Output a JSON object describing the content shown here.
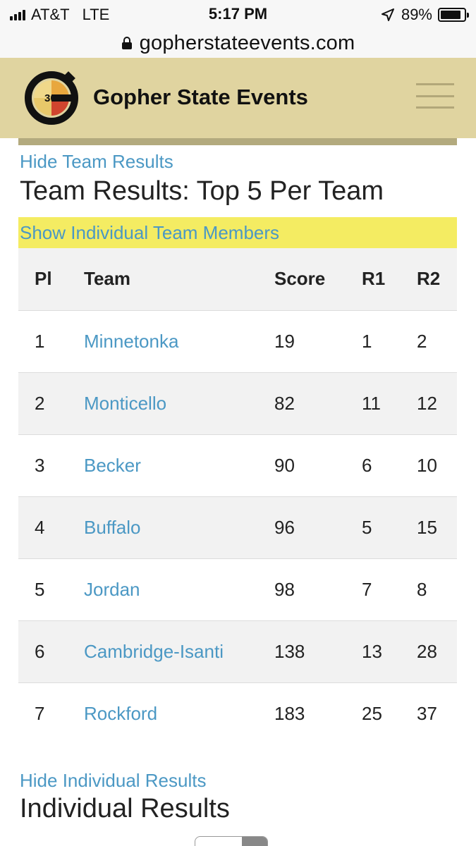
{
  "status_bar": {
    "carrier": "AT&T",
    "network": "LTE",
    "time": "5:17 PM",
    "battery": "89%",
    "battery_level": 0.89
  },
  "browser": {
    "url": "gopherstateevents.com"
  },
  "header": {
    "site_name": "Gopher State Events",
    "logo_text": "30",
    "accent_color": "#e0d4a0"
  },
  "team_section": {
    "hide_link": "Hide Team Results",
    "heading": "Team Results: Top 5 Per Team",
    "show_members_link": "Show Individual Team Members",
    "columns": [
      "Pl",
      "Team",
      "Score",
      "R1",
      "R2"
    ],
    "rows": [
      {
        "pl": "1",
        "team": "Minnetonka",
        "score": "19",
        "r1": "1",
        "r2": "2"
      },
      {
        "pl": "2",
        "team": "Monticello",
        "score": "82",
        "r1": "11",
        "r2": "12"
      },
      {
        "pl": "3",
        "team": "Becker",
        "score": "90",
        "r1": "6",
        "r2": "10"
      },
      {
        "pl": "4",
        "team": "Buffalo",
        "score": "96",
        "r1": "5",
        "r2": "15"
      },
      {
        "pl": "5",
        "team": "Jordan",
        "score": "98",
        "r1": "7",
        "r2": "8"
      },
      {
        "pl": "6",
        "team": "Cambridge-Isanti",
        "score": "138",
        "r1": "13",
        "r2": "28"
      },
      {
        "pl": "7",
        "team": "Rockford",
        "score": "183",
        "r1": "25",
        "r2": "37"
      }
    ]
  },
  "individual_section": {
    "hide_link": "Hide Individual Results",
    "heading": "Individual Results"
  }
}
